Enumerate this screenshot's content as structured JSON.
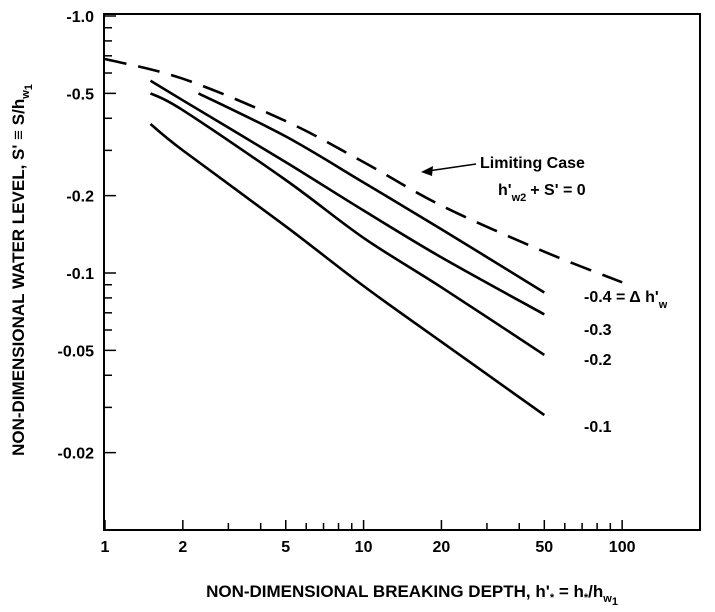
{
  "chart_data": {
    "type": "line",
    "xscale": "log",
    "yscale": "log",
    "xlim": [
      1,
      200
    ],
    "ylim": [
      -0.01,
      -1.0
    ],
    "grid": false,
    "xlabel": "NON-DIMENSIONAL BREAKING DEPTH, h'* = h*/hw1",
    "ylabel": "NON-DIMENSIONAL WATER LEVEL, S' = S/hw1",
    "x_ticks": [
      {
        "value": 1,
        "label": "1"
      },
      {
        "value": 2,
        "label": "2"
      },
      {
        "value": 5,
        "label": "5"
      },
      {
        "value": 10,
        "label": "10"
      },
      {
        "value": 20,
        "label": "20"
      },
      {
        "value": 50,
        "label": "50"
      },
      {
        "value": 100,
        "label": "100"
      }
    ],
    "y_ticks": [
      {
        "value": -1.0,
        "label": "-1.0"
      },
      {
        "value": -0.5,
        "label": "-0.5"
      },
      {
        "value": -0.2,
        "label": "-0.2"
      },
      {
        "value": -0.1,
        "label": "-0.1"
      },
      {
        "value": -0.05,
        "label": "-0.05"
      },
      {
        "value": -0.02,
        "label": "-0.02"
      }
    ],
    "series": [
      {
        "name": "Limiting Case",
        "style": "dashed",
        "points": [
          [
            1,
            -0.68
          ],
          [
            2,
            -0.57
          ],
          [
            5,
            -0.39
          ],
          [
            10,
            -0.27
          ],
          [
            20,
            -0.183
          ],
          [
            50,
            -0.121
          ],
          [
            100,
            -0.092
          ]
        ]
      },
      {
        "name": "-0.4",
        "style": "solid",
        "points": [
          [
            2.3,
            -0.5
          ],
          [
            5,
            -0.34
          ],
          [
            10,
            -0.225
          ],
          [
            20,
            -0.148
          ],
          [
            50,
            -0.084
          ]
        ]
      },
      {
        "name": "-0.3",
        "style": "solid",
        "points": [
          [
            1.5,
            -0.56
          ],
          [
            2,
            -0.47
          ],
          [
            5,
            -0.27
          ],
          [
            10,
            -0.175
          ],
          [
            20,
            -0.115
          ],
          [
            50,
            -0.069
          ]
        ]
      },
      {
        "name": "-0.2",
        "style": "solid",
        "points": [
          [
            1.5,
            -0.5
          ],
          [
            2,
            -0.43
          ],
          [
            5,
            -0.23
          ],
          [
            10,
            -0.137
          ],
          [
            20,
            -0.088
          ],
          [
            50,
            -0.048
          ]
        ]
      },
      {
        "name": "-0.1",
        "style": "solid",
        "points": [
          [
            1.5,
            -0.38
          ],
          [
            2,
            -0.3
          ],
          [
            5,
            -0.152
          ],
          [
            10,
            -0.089
          ],
          [
            20,
            -0.054
          ],
          [
            50,
            -0.028
          ]
        ]
      }
    ],
    "annotations": {
      "limiting_title": "Limiting Case",
      "limiting_eq_h": "h'",
      "limiting_eq_sub": "w2",
      "limiting_eq_rest": "+  S'  =  0",
      "label_04": "-0.4 = Δ h'",
      "label_04_sub": "w",
      "label_03": "-0.3",
      "label_02": "-0.2",
      "label_01": "-0.1"
    },
    "axis_text": {
      "x_main": "NON-DIMENSIONAL BREAKING DEPTH, h'",
      "x_sub1": "*",
      "x_mid": " = h",
      "x_sub2": "*",
      "x_mid2": "/h",
      "x_sub3": "w",
      "x_sub3b": "1",
      "y_main": "NON-DIMENSIONAL WATER LEVEL, S' ≡ S/h",
      "y_sub": "w",
      "y_subsub": "1"
    }
  }
}
